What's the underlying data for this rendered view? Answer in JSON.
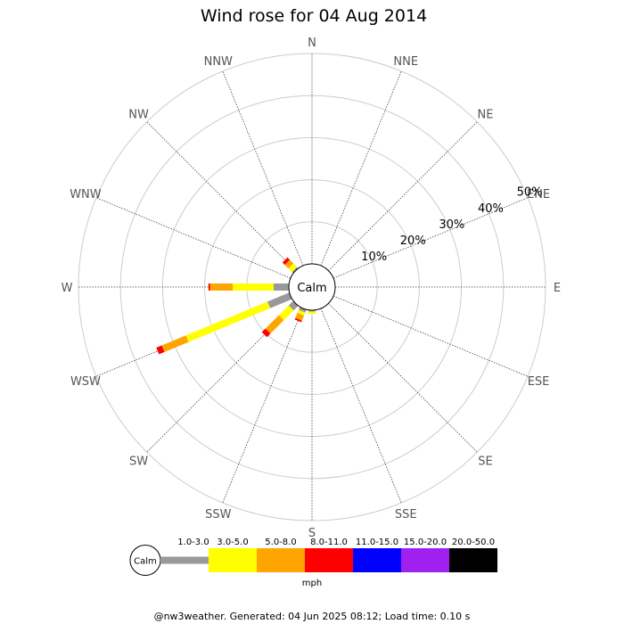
{
  "chart_data": {
    "type": "wind_rose",
    "title": "Wind rose for 04 Aug 2014",
    "directions": [
      "N",
      "NNE",
      "NE",
      "ENE",
      "E",
      "ESE",
      "SE",
      "SSE",
      "S",
      "SSW",
      "SW",
      "WSW",
      "W",
      "WNW",
      "NW",
      "NNW"
    ],
    "radial_ticks": [
      "10%",
      "20%",
      "30%",
      "40%",
      "50%"
    ],
    "radial_range": [
      0,
      50
    ],
    "calm_label": "Calm",
    "units": "mph",
    "bins": [
      {
        "label": "1.0-3.0",
        "color": "#999999"
      },
      {
        "label": "3.0-5.0",
        "color": "#ffff00"
      },
      {
        "label": "5.0-8.0",
        "color": "#ffa500"
      },
      {
        "label": "8.0-11.0",
        "color": "#ff0000"
      },
      {
        "label": "11.0-15.0",
        "color": "#0000ff"
      },
      {
        "label": "15.0-20.0",
        "color": "#a020f0"
      },
      {
        "label": "20.0-50.0",
        "color": "#000000"
      }
    ],
    "series": [
      {
        "direction": "NW",
        "values": [
          0.4,
          1.2,
          1.2,
          0.8,
          0,
          0,
          0
        ]
      },
      {
        "direction": "W",
        "values": [
          3.6,
          9.7,
          5.4,
          0.4,
          0,
          0,
          0
        ]
      },
      {
        "direction": "WSW",
        "values": [
          5.6,
          21.0,
          6.2,
          1.4,
          0,
          0,
          0
        ]
      },
      {
        "direction": "SW",
        "values": [
          1.5,
          3.3,
          4.5,
          1.2,
          0,
          0,
          0
        ]
      },
      {
        "direction": "SSW",
        "values": [
          0.7,
          0.8,
          1.3,
          0.4,
          0,
          0,
          0
        ]
      },
      {
        "direction": "S",
        "values": [
          0.3,
          0.6,
          0,
          0,
          0,
          0,
          0
        ]
      }
    ]
  },
  "footer": "@nw3weather. Generated: 04 Jun 2025 08:12; Load time: 0.10 s"
}
